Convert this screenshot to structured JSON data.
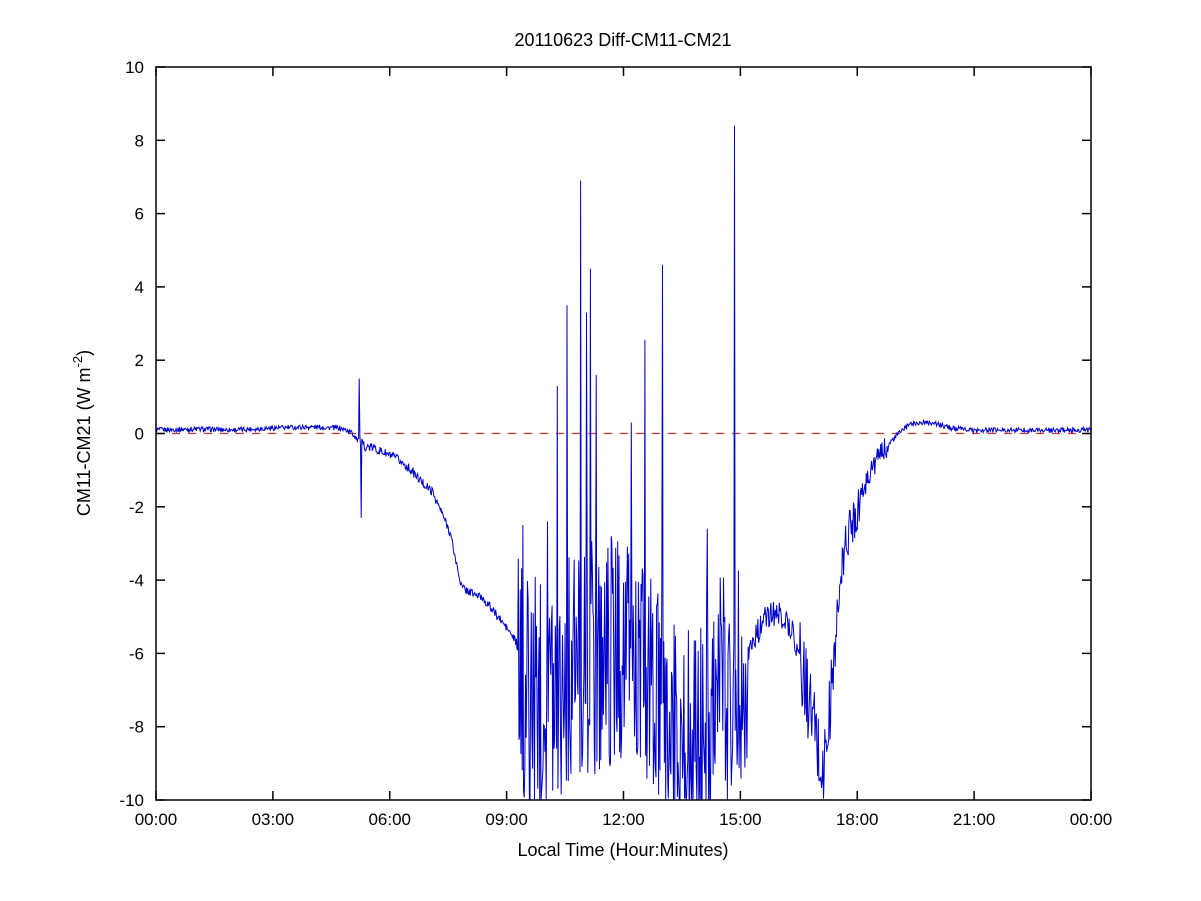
{
  "chart_data": {
    "type": "line",
    "title": "20110623 Diff-CM11-CM21",
    "xlabel": "Local Time (Hour:Minutes)",
    "ylabel": "CM11-CM21 (W m-2)",
    "ylabel_parts": {
      "pre": "CM11-CM21 (W m",
      "sup": "-2",
      "post": ")"
    },
    "xlim": [
      0,
      24
    ],
    "ylim": [
      -10,
      10
    ],
    "grid": "off",
    "legend": "none",
    "xticks": {
      "values": [
        0,
        3,
        6,
        9,
        12,
        15,
        18,
        21,
        24
      ],
      "labels": [
        "00:00",
        "03:00",
        "06:00",
        "09:00",
        "12:00",
        "15:00",
        "18:00",
        "21:00",
        "00:00"
      ]
    },
    "yticks": [
      -10,
      -8,
      -6,
      -4,
      -2,
      0,
      2,
      4,
      6,
      8,
      10
    ],
    "colors": {
      "data_line": "#0000CC",
      "zero_line": "#CC3333",
      "axes": "#000000"
    },
    "series": [
      {
        "name": "CM11-CM21 difference",
        "color": "#0000CC",
        "sample_step_minutes": 1,
        "baseline_points": [
          [
            0,
            0.1
          ],
          [
            1,
            0.12
          ],
          [
            2,
            0.1
          ],
          [
            3,
            0.15
          ],
          [
            4,
            0.18
          ],
          [
            4.7,
            0.15
          ],
          [
            5.0,
            0.05
          ],
          [
            5.1,
            -0.05
          ],
          [
            5.35,
            -0.35
          ],
          [
            5.6,
            -0.4
          ],
          [
            5.9,
            -0.55
          ],
          [
            6.2,
            -0.7
          ],
          [
            6.5,
            -0.95
          ],
          [
            6.8,
            -1.3
          ],
          [
            7.1,
            -1.6
          ],
          [
            7.35,
            -2.2
          ],
          [
            7.55,
            -2.7
          ],
          [
            7.7,
            -3.5
          ],
          [
            7.85,
            -4.2
          ],
          [
            8.1,
            -4.35
          ],
          [
            8.4,
            -4.5
          ],
          [
            8.7,
            -4.9
          ],
          [
            9.0,
            -5.3
          ],
          [
            9.25,
            -5.7
          ],
          [
            9.4,
            -7.0
          ],
          [
            10.0,
            -7.0
          ],
          [
            10.8,
            -6.3
          ],
          [
            11.5,
            -6.0
          ],
          [
            11.95,
            -5.8
          ],
          [
            12.5,
            -6.6
          ],
          [
            13.1,
            -7.8
          ],
          [
            13.6,
            -8.6
          ],
          [
            14.0,
            -8.3
          ],
          [
            14.35,
            -6.6
          ],
          [
            14.8,
            -7.0
          ],
          [
            15.1,
            -6.3
          ],
          [
            15.35,
            -5.6
          ],
          [
            15.6,
            -5.1
          ],
          [
            15.85,
            -4.9
          ],
          [
            16.1,
            -5.0
          ],
          [
            16.35,
            -5.4
          ],
          [
            16.55,
            -6.3
          ],
          [
            16.75,
            -7.3
          ],
          [
            16.95,
            -8.3
          ],
          [
            17.1,
            -9.4
          ],
          [
            17.25,
            -8.2
          ],
          [
            17.4,
            -6.2
          ],
          [
            17.55,
            -4.3
          ],
          [
            17.7,
            -3.0
          ],
          [
            17.9,
            -2.3
          ],
          [
            18.1,
            -1.7
          ],
          [
            18.35,
            -1.0
          ],
          [
            18.6,
            -0.55
          ],
          [
            18.85,
            -0.25
          ],
          [
            19.1,
            0.05
          ],
          [
            19.4,
            0.28
          ],
          [
            19.9,
            0.3
          ],
          [
            20.4,
            0.15
          ],
          [
            21.0,
            0.08
          ],
          [
            22.0,
            0.1
          ],
          [
            23.0,
            0.08
          ],
          [
            24.0,
            0.1
          ]
        ],
        "noise_segments": [
          [
            0,
            5.05,
            0.07
          ],
          [
            5.05,
            9.3,
            0.12
          ],
          [
            9.3,
            15.2,
            3.2
          ],
          [
            15.2,
            16.5,
            0.35
          ],
          [
            16.5,
            17.35,
            1.2
          ],
          [
            17.35,
            18.1,
            0.7
          ],
          [
            18.1,
            18.8,
            0.3
          ],
          [
            18.8,
            24.01,
            0.07
          ]
        ],
        "spikes": [
          [
            5.22,
            1.5
          ],
          [
            5.26,
            -2.3
          ],
          [
            9.42,
            -2.5
          ],
          [
            9.6,
            -10
          ],
          [
            10.05,
            -2.4
          ],
          [
            10.3,
            1.3
          ],
          [
            10.55,
            3.5
          ],
          [
            10.9,
            6.9
          ],
          [
            11.05,
            3.3
          ],
          [
            11.15,
            4.5
          ],
          [
            11.3,
            1.6
          ],
          [
            12.2,
            0.3
          ],
          [
            12.55,
            2.55
          ],
          [
            13.0,
            4.6
          ],
          [
            14.15,
            -2.6
          ],
          [
            14.85,
            8.4
          ]
        ]
      },
      {
        "name": "zero reference",
        "color": "#CC3333",
        "style": "dashed",
        "y": 0
      }
    ]
  }
}
